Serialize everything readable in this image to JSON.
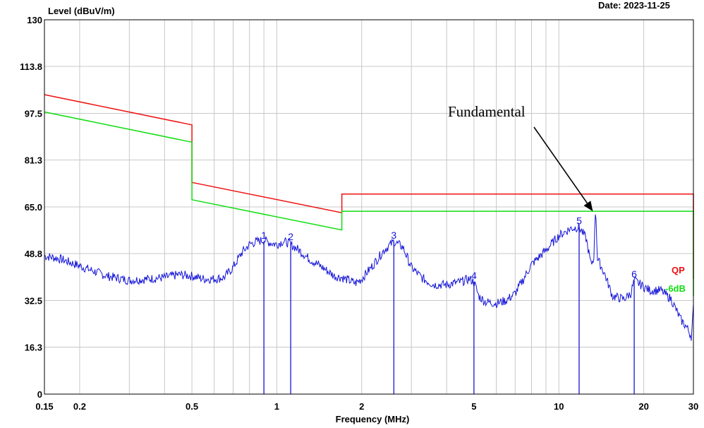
{
  "chart_data": {
    "type": "line",
    "ylabel": "Level (dBuV/m)",
    "xlabel": "Frequency (MHz)",
    "date_label": "Date: 2023-11-25",
    "x_scale": "log",
    "xlim": [
      0.15,
      30
    ],
    "ylim": [
      0,
      130
    ],
    "y_ticks": [
      "0",
      "16.3",
      "32.5",
      "48.8",
      "65.0",
      "81.3",
      "97.5",
      "113.8",
      "130"
    ],
    "y_tick_values": [
      0,
      16.3,
      32.5,
      48.8,
      65.0,
      81.3,
      97.5,
      113.8,
      130
    ],
    "x_ticks": [
      "0.15",
      "0.2",
      "0.5",
      "1",
      "2",
      "5",
      "10",
      "20",
      "30"
    ],
    "x_tick_values": [
      0.15,
      0.2,
      0.5,
      1,
      2,
      5,
      10,
      20,
      30
    ],
    "grid": true,
    "colors": {
      "trace": "#1515d8",
      "qp": "#ee1111",
      "minus6": "#11dd11",
      "grid": "#c8c8c8"
    },
    "series": [
      {
        "name": "QP",
        "color": "#ee1111",
        "points": [
          [
            0.15,
            104.0
          ],
          [
            0.5,
            93.5
          ],
          [
            0.5,
            73.5
          ],
          [
            1.7,
            63.0
          ],
          [
            1.7,
            69.5
          ],
          [
            30,
            69.5
          ],
          [
            30,
            40.0
          ]
        ]
      },
      {
        "name": "-6dB",
        "color": "#11dd11",
        "points": [
          [
            0.15,
            98.0
          ],
          [
            0.5,
            87.5
          ],
          [
            0.5,
            67.5
          ],
          [
            1.7,
            57.0
          ],
          [
            1.7,
            63.5
          ],
          [
            30,
            63.5
          ],
          [
            30,
            34.0
          ]
        ]
      },
      {
        "name": "",
        "color": "#1515d8",
        "points": [
          [
            0.15,
            48
          ],
          [
            0.17,
            47
          ],
          [
            0.2,
            44.5
          ],
          [
            0.25,
            41
          ],
          [
            0.3,
            39.5
          ],
          [
            0.35,
            40
          ],
          [
            0.4,
            40.5
          ],
          [
            0.45,
            41.5
          ],
          [
            0.5,
            41
          ],
          [
            0.55,
            40
          ],
          [
            0.6,
            40
          ],
          [
            0.65,
            40.5
          ],
          [
            0.7,
            44
          ],
          [
            0.75,
            49
          ],
          [
            0.8,
            52
          ],
          [
            0.85,
            53
          ],
          [
            0.9,
            53.5
          ],
          [
            0.95,
            52.5
          ],
          [
            1.0,
            52
          ],
          [
            1.05,
            53
          ],
          [
            1.1,
            52.5
          ],
          [
            1.2,
            50
          ],
          [
            1.3,
            47
          ],
          [
            1.4,
            45
          ],
          [
            1.5,
            43
          ],
          [
            1.6,
            41
          ],
          [
            1.7,
            40.5
          ],
          [
            1.8,
            39.5
          ],
          [
            1.9,
            38.5
          ],
          [
            2.0,
            40
          ],
          [
            2.2,
            45
          ],
          [
            2.4,
            50
          ],
          [
            2.6,
            53
          ],
          [
            2.8,
            51
          ],
          [
            3.0,
            44
          ],
          [
            3.3,
            40
          ],
          [
            3.6,
            38
          ],
          [
            4.0,
            38
          ],
          [
            4.5,
            39
          ],
          [
            4.8,
            40
          ],
          [
            5.0,
            39
          ],
          [
            5.2,
            34
          ],
          [
            5.5,
            32
          ],
          [
            6.0,
            31.5
          ],
          [
            6.5,
            32.5
          ],
          [
            7.0,
            35
          ],
          [
            7.5,
            40
          ],
          [
            8.0,
            45
          ],
          [
            9.0,
            50
          ],
          [
            10.0,
            55
          ],
          [
            11.0,
            57.5
          ],
          [
            11.8,
            58
          ],
          [
            12.5,
            54
          ],
          [
            13.0,
            45
          ],
          [
            13.3,
            47
          ],
          [
            13.5,
            66
          ],
          [
            13.7,
            47
          ],
          [
            14.5,
            42
          ],
          [
            15.5,
            34
          ],
          [
            17.0,
            33
          ],
          [
            18.0,
            35
          ],
          [
            18.5,
            39.5
          ],
          [
            19.5,
            38
          ],
          [
            21.0,
            36
          ],
          [
            23.0,
            36
          ],
          [
            25.0,
            33
          ],
          [
            27.0,
            26
          ],
          [
            28.5,
            23
          ],
          [
            29.5,
            20
          ],
          [
            30.0,
            30
          ]
        ]
      }
    ],
    "markers": [
      {
        "label": "1",
        "x": 0.9,
        "y": 53.0
      },
      {
        "label": "2",
        "x": 1.12,
        "y": 52.5
      },
      {
        "label": "3",
        "x": 2.6,
        "y": 53.0
      },
      {
        "label": "4",
        "x": 5.0,
        "y": 39.0
      },
      {
        "label": "5",
        "x": 11.8,
        "y": 58.0
      },
      {
        "label": "6",
        "x": 18.5,
        "y": 39.5
      }
    ],
    "legend_labels": {
      "qp": "QP",
      "minus6": "-6dB"
    },
    "annotation": {
      "text": "Fundamental",
      "target_x": 13.2,
      "target_y": 63.5
    }
  }
}
